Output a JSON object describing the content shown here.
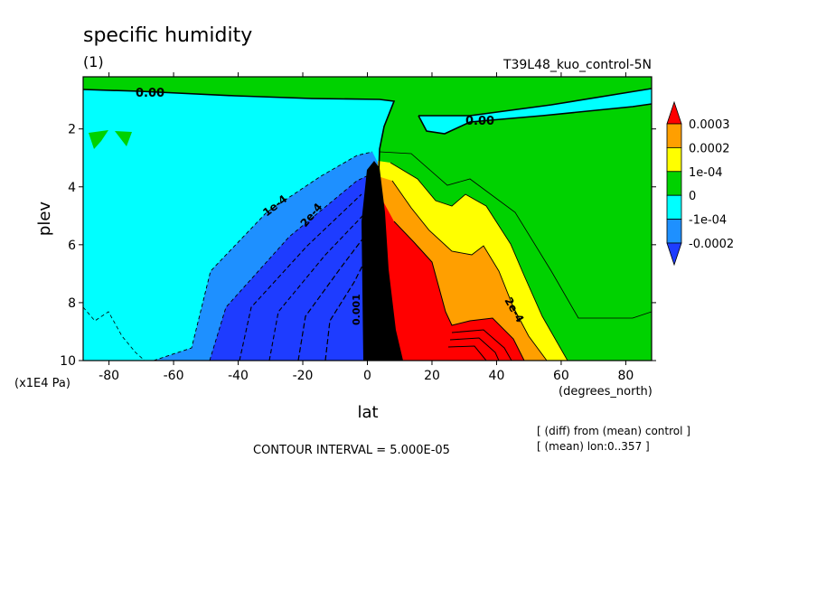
{
  "header": {
    "title": "specific humidity",
    "panel_label": "(1)",
    "run_name": "T39L48_kuo_control-5N"
  },
  "footer": {
    "contour_interval": "CONTOUR INTERVAL = 5.000E-05",
    "diff_note": "[ (diff) from (mean) control ]",
    "mean_note": "[ (mean) lon:0..357 ]"
  },
  "chart_data": {
    "type": "heatmap",
    "title": "specific humidity",
    "xlabel": "lat",
    "ylabel": "plev",
    "x_units": "(degrees_north)",
    "y_units": "(x1E4 Pa)",
    "xlim": [
      -88,
      88
    ],
    "ylim": [
      10,
      0.2
    ],
    "x_ticks": [
      -80,
      -60,
      -40,
      -20,
      0,
      20,
      40,
      60,
      80
    ],
    "y_ticks": [
      2,
      4,
      6,
      8,
      10
    ],
    "y_reversed": true,
    "contour_interval": 5e-05,
    "colorbar": {
      "labels": [
        "0.0003",
        "0.0002",
        "1e-04",
        "0",
        "-1e-04",
        "-0.0002"
      ],
      "colors": [
        "#ff0000",
        "#ff9f00",
        "#ffff00",
        "#00d200",
        "#00ffff",
        "#1e90ff",
        "#1e3cff"
      ]
    },
    "contour_labels": [
      {
        "text": "0.00",
        "lat": -70,
        "plev": 0.6
      },
      {
        "text": "0.00",
        "lat": 35,
        "plev": 1.2
      },
      {
        "text": "1e-4",
        "lat": -28,
        "plev": 4.8
      },
      {
        "text": "2e-4",
        "lat": -15,
        "plev": 5.3
      },
      {
        "text": "2e-4",
        "lat": 45,
        "plev": 8.0
      },
      {
        "text": "0.001",
        "lat": 0,
        "plev": 8.7
      }
    ]
  }
}
